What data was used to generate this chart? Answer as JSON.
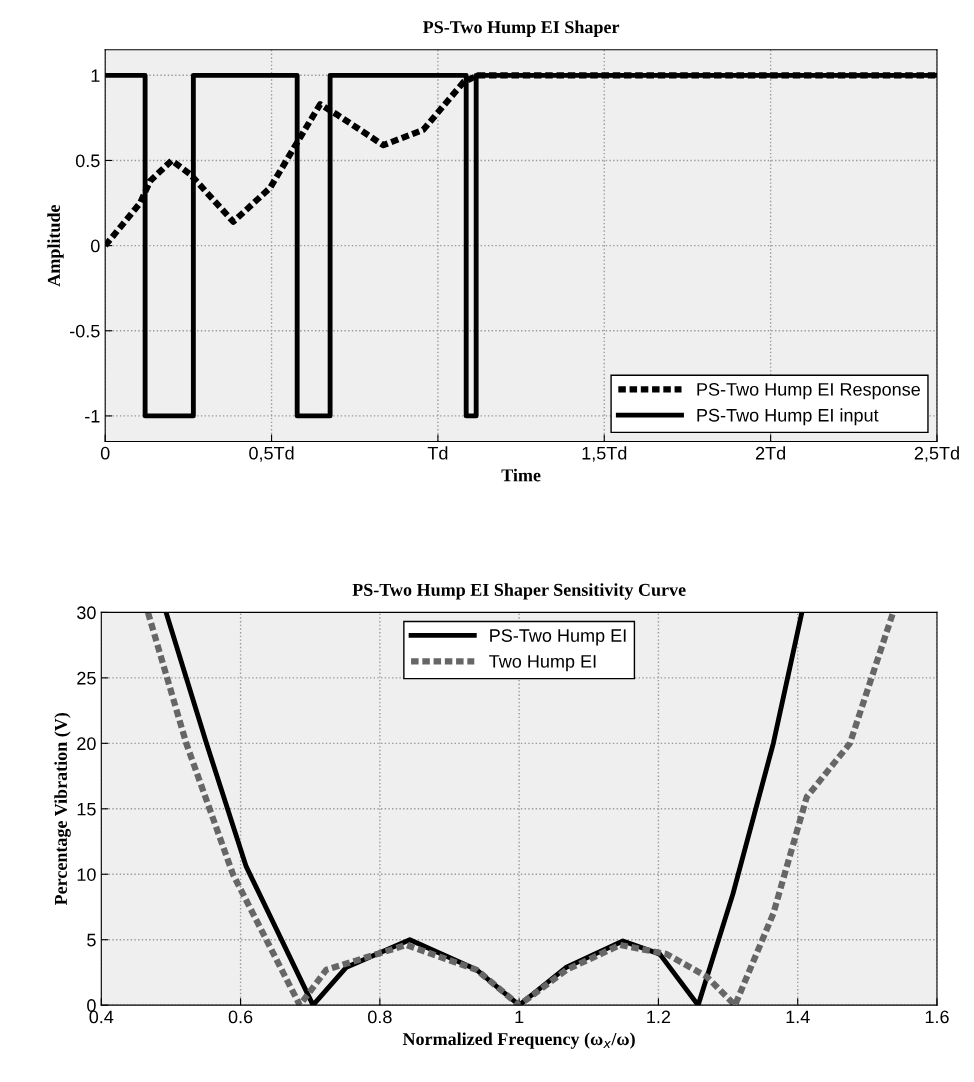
{
  "chart_data": [
    {
      "type": "line",
      "title": "PS-Two Hump EI Shaper",
      "xlabel": "Time",
      "ylabel": "Amplitude",
      "xlim": [
        0,
        2.5
      ],
      "xticks": [
        0,
        {
          "value": 0.5,
          "label": "0,5Td"
        },
        {
          "value": 1,
          "label": "Td"
        },
        {
          "value": 1.5,
          "label": "1,5Td"
        },
        {
          "value": 2,
          "label": "2Td"
        },
        {
          "value": 2.5,
          "label": "2,5Td"
        }
      ],
      "ylim": [
        -1.15,
        1.15
      ],
      "yticks": [
        -1,
        -0.5,
        0,
        0.5,
        1
      ],
      "grid": true,
      "legend": "bottom right",
      "series": [
        {
          "name": "PS-Two Hump EI Response",
          "color": "#000000",
          "line_style": "dotted",
          "x": [
            0,
            0.105,
            0.135,
            0.2,
            0.255,
            0.385,
            0.496,
            0.566,
            0.646,
            0.696,
            0.836,
            0.956,
            1.077,
            1.12,
            2.5
          ],
          "values": [
            0,
            0.25,
            0.38,
            0.5,
            0.42,
            0.14,
            0.34,
            0.57,
            0.83,
            0.77,
            0.59,
            0.68,
            0.96,
            1,
            1
          ]
        },
        {
          "name": "PS-Two Hump EI input",
          "color": "#000000",
          "line_style": "solid",
          "x": [
            0,
            0.12,
            0.12,
            0.265,
            0.265,
            0.577,
            0.577,
            0.676,
            0.676,
            1.085,
            1.085,
            1.115,
            1.115,
            2.5
          ],
          "values": [
            1,
            1,
            -1,
            -1,
            1,
            1,
            -1,
            -1,
            1,
            1,
            -1,
            -1,
            1,
            1
          ]
        }
      ]
    },
    {
      "type": "line",
      "title": "PS-Two Hump EI Shaper Sensitivity Curve",
      "xlabel": "Normalized Frequency (ω$_{x}$/ω)",
      "ylabel": "Percentage Vibration (V)",
      "xlim": [
        0.4,
        1.6
      ],
      "xticks": [
        0.4,
        0.6,
        0.8,
        1,
        1.2,
        1.4,
        1.6
      ],
      "ylim": [
        0,
        30
      ],
      "yticks": [
        0,
        5,
        10,
        15,
        20,
        25,
        30
      ],
      "grid": true,
      "legend": "top",
      "series": [
        {
          "name": "PS-Two Hump EI",
          "color": "#000000",
          "line_style": "solid",
          "x": [
            0.493,
            0.551,
            0.608,
            0.704,
            0.752,
            0.843,
            0.939,
            1.0,
            1.068,
            1.149,
            1.202,
            1.257,
            1.307,
            1.365,
            1.406
          ],
          "values": [
            30,
            20,
            10.6,
            0,
            2.9,
            5,
            2.7,
            0,
            2.9,
            4.9,
            3.9,
            0,
            8.5,
            20,
            30
          ]
        },
        {
          "name": "Two Hump EI",
          "color": "#666666",
          "line_style": "dotted",
          "x": [
            0.467,
            0.522,
            0.589,
            0.685,
            0.723,
            0.838,
            0.939,
            1.0,
            1.068,
            1.145,
            1.212,
            1.269,
            1.31,
            1.365,
            1.413,
            1.475,
            1.537
          ],
          "values": [
            30,
            20,
            10,
            0,
            2.7,
            4.6,
            2.7,
            0,
            2.7,
            4.6,
            3.9,
            2.2,
            0,
            7,
            15.9,
            20,
            30
          ]
        }
      ]
    }
  ]
}
